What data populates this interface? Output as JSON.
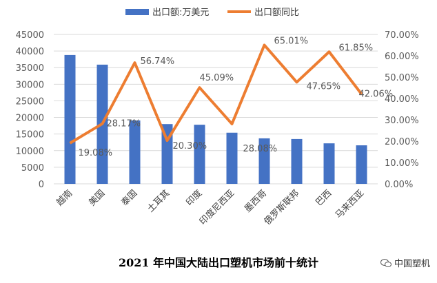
{
  "chart_data": {
    "type": "bar+line",
    "title": "2021 年中国大陆出口塑机市场前十统计",
    "categories": [
      "越南",
      "美国",
      "泰国",
      "土耳其",
      "印度",
      "印度尼西亚",
      "墨西哥",
      "俄罗斯联邦",
      "巴西",
      "马来西亚"
    ],
    "series": [
      {
        "name": "出口额:万美元",
        "type": "bar",
        "axis": "left",
        "color": "#4472C4",
        "values": [
          38800,
          35900,
          19100,
          18000,
          17800,
          15400,
          13700,
          13500,
          12200,
          11600
        ]
      },
      {
        "name": "出口额同比",
        "type": "line",
        "axis": "right",
        "color": "#ED7D31",
        "values": [
          19.08,
          28.17,
          56.74,
          20.3,
          45.09,
          28.08,
          65.01,
          47.65,
          61.85,
          42.06
        ],
        "labels": [
          "19.08%",
          "28.17%",
          "56.74%",
          "20.30%",
          "45.09%",
          "28.08%",
          "65.01%",
          "47.65%",
          "61.85%",
          "42.06%"
        ]
      }
    ],
    "left_axis": {
      "range": [
        0,
        45000
      ],
      "ticks": [
        "0",
        "5000",
        "10000",
        "15000",
        "20000",
        "25000",
        "30000",
        "35000",
        "40000",
        "45000"
      ]
    },
    "right_axis": {
      "range": [
        0,
        70
      ],
      "ticks": [
        "0.00%",
        "10.00%",
        "20.00%",
        "30.00%",
        "40.00%",
        "50.00%",
        "60.00%",
        "70.00%"
      ]
    },
    "grid": true,
    "legend": "top"
  },
  "watermark": {
    "text": "中国塑机",
    "icon": "wechat-icon"
  }
}
